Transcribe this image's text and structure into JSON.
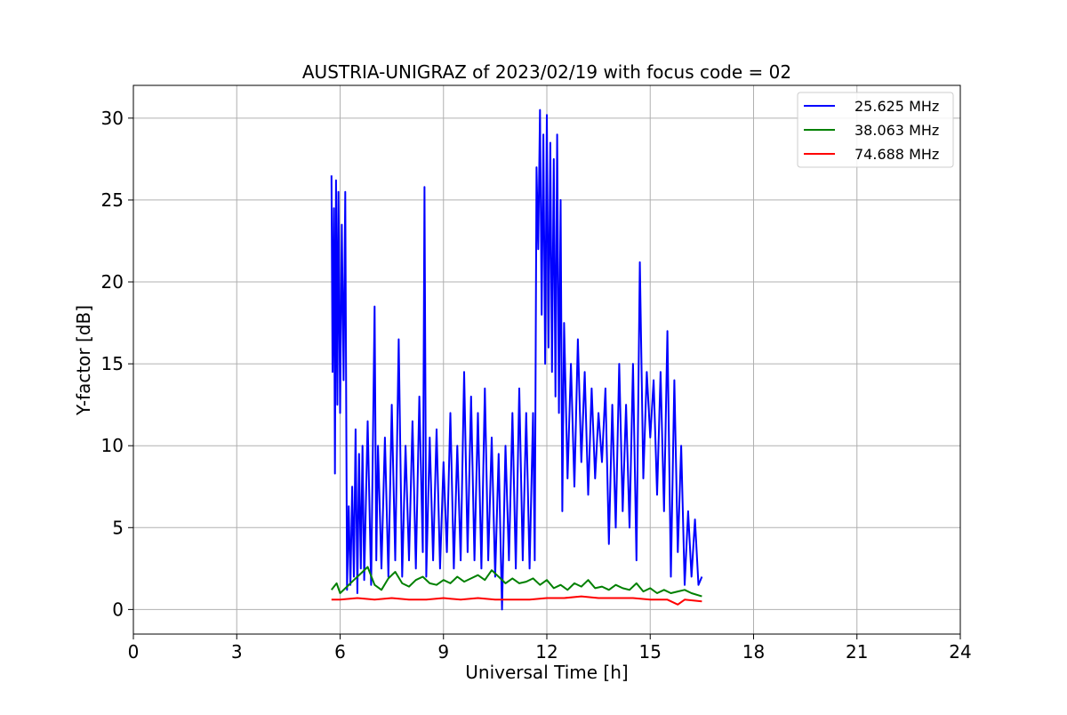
{
  "chart_data": {
    "type": "line",
    "title": "AUSTRIA-UNIGRAZ of 2023/02/19 with focus code = 02",
    "xlabel": "Universal Time [h]",
    "ylabel": "Y-factor [dB]",
    "xlim": [
      0,
      24
    ],
    "ylim": [
      -1.5,
      32
    ],
    "xticks": [
      0,
      3,
      6,
      9,
      12,
      15,
      18,
      21,
      24
    ],
    "yticks": [
      0,
      5,
      10,
      15,
      20,
      25,
      30
    ],
    "grid": true,
    "legend_position": "top-right",
    "series": [
      {
        "name": "25.625 MHz",
        "color": "#0000ff",
        "x": [
          5.75,
          5.78,
          5.82,
          5.85,
          5.88,
          5.92,
          5.95,
          6.0,
          6.05,
          6.1,
          6.15,
          6.2,
          6.25,
          6.3,
          6.35,
          6.4,
          6.45,
          6.5,
          6.55,
          6.6,
          6.65,
          6.7,
          6.8,
          6.9,
          7.0,
          7.05,
          7.1,
          7.2,
          7.3,
          7.4,
          7.5,
          7.6,
          7.7,
          7.8,
          7.9,
          8.0,
          8.1,
          8.2,
          8.3,
          8.4,
          8.45,
          8.5,
          8.6,
          8.7,
          8.8,
          8.9,
          9.0,
          9.1,
          9.2,
          9.3,
          9.4,
          9.5,
          9.6,
          9.7,
          9.8,
          9.9,
          10.0,
          10.1,
          10.2,
          10.3,
          10.4,
          10.5,
          10.6,
          10.7,
          10.8,
          10.9,
          11.0,
          11.1,
          11.2,
          11.3,
          11.4,
          11.5,
          11.6,
          11.65,
          11.7,
          11.75,
          11.8,
          11.85,
          11.9,
          11.95,
          12.0,
          12.05,
          12.1,
          12.15,
          12.2,
          12.25,
          12.3,
          12.35,
          12.4,
          12.45,
          12.5,
          12.6,
          12.7,
          12.8,
          12.9,
          13.0,
          13.1,
          13.2,
          13.3,
          13.4,
          13.5,
          13.6,
          13.7,
          13.8,
          13.9,
          14.0,
          14.1,
          14.2,
          14.3,
          14.4,
          14.5,
          14.6,
          14.7,
          14.8,
          14.9,
          15.0,
          15.1,
          15.2,
          15.3,
          15.4,
          15.5,
          15.6,
          15.7,
          15.8,
          15.9,
          16.0,
          16.1,
          16.2,
          16.3,
          16.4,
          16.5
        ],
        "values": [
          26.5,
          14.5,
          24.5,
          8.3,
          26.2,
          12.5,
          25.5,
          12.0,
          23.5,
          14.0,
          25.5,
          1.2,
          6.3,
          1.5,
          7.5,
          2.0,
          11.0,
          1.0,
          9.5,
          2.5,
          10.0,
          1.8,
          11.5,
          1.5,
          18.5,
          3.0,
          10.0,
          2.5,
          10.5,
          2.0,
          12.5,
          3.0,
          16.5,
          2.0,
          10.0,
          3.0,
          11.5,
          2.5,
          13.0,
          3.5,
          25.8,
          2.0,
          10.5,
          3.0,
          11.0,
          2.5,
          9.0,
          3.5,
          12.0,
          2.5,
          10.0,
          3.0,
          14.5,
          3.5,
          13.0,
          3.0,
          12.0,
          2.5,
          13.5,
          3.0,
          10.5,
          2.0,
          9.5,
          0.0,
          10.0,
          3.0,
          12.0,
          2.5,
          13.5,
          3.0,
          12.0,
          2.5,
          12.0,
          3.0,
          27.0,
          22.0,
          30.5,
          18.0,
          29.0,
          15.0,
          30.2,
          16.0,
          28.5,
          14.5,
          27.5,
          13.0,
          29.0,
          12.0,
          25.0,
          6.0,
          17.5,
          8.0,
          15.0,
          7.5,
          16.5,
          9.0,
          14.5,
          7.0,
          13.5,
          8.0,
          12.0,
          9.0,
          13.5,
          4.0,
          12.5,
          5.0,
          15.0,
          6.0,
          12.5,
          5.0,
          15.0,
          3.0,
          21.2,
          8.0,
          14.5,
          10.5,
          14.0,
          7.0,
          14.5,
          6.0,
          17.0,
          2.0,
          14.0,
          3.5,
          10.0,
          1.5,
          6.0,
          2.0,
          5.5,
          1.5,
          2.0
        ]
      },
      {
        "name": "38.063 MHz",
        "color": "#008000",
        "x": [
          5.75,
          5.9,
          6.0,
          6.2,
          6.4,
          6.6,
          6.8,
          7.0,
          7.2,
          7.4,
          7.6,
          7.8,
          8.0,
          8.2,
          8.4,
          8.6,
          8.8,
          9.0,
          9.2,
          9.4,
          9.6,
          9.8,
          10.0,
          10.2,
          10.4,
          10.6,
          10.8,
          11.0,
          11.2,
          11.4,
          11.6,
          11.8,
          12.0,
          12.2,
          12.4,
          12.6,
          12.8,
          13.0,
          13.2,
          13.4,
          13.6,
          13.8,
          14.0,
          14.2,
          14.4,
          14.6,
          14.8,
          15.0,
          15.2,
          15.4,
          15.6,
          15.8,
          16.0,
          16.2,
          16.5
        ],
        "values": [
          1.2,
          1.6,
          1.0,
          1.4,
          1.8,
          2.2,
          2.6,
          1.5,
          1.2,
          1.9,
          2.3,
          1.6,
          1.4,
          1.8,
          2.0,
          1.6,
          1.5,
          1.8,
          1.6,
          2.0,
          1.7,
          1.9,
          2.1,
          1.8,
          2.4,
          2.0,
          1.6,
          1.9,
          1.6,
          1.7,
          1.9,
          1.5,
          1.8,
          1.3,
          1.5,
          1.2,
          1.6,
          1.4,
          1.8,
          1.3,
          1.4,
          1.2,
          1.5,
          1.3,
          1.2,
          1.6,
          1.1,
          1.3,
          1.0,
          1.2,
          1.0,
          1.1,
          1.2,
          1.0,
          0.8
        ]
      },
      {
        "name": "74.688 MHz",
        "color": "#ff0000",
        "x": [
          5.75,
          6.0,
          6.5,
          7.0,
          7.5,
          8.0,
          8.5,
          9.0,
          9.5,
          10.0,
          10.5,
          11.0,
          11.5,
          12.0,
          12.5,
          13.0,
          13.5,
          14.0,
          14.5,
          15.0,
          15.5,
          15.8,
          16.0,
          16.5
        ],
        "values": [
          0.6,
          0.6,
          0.7,
          0.6,
          0.7,
          0.6,
          0.6,
          0.7,
          0.6,
          0.7,
          0.6,
          0.6,
          0.6,
          0.7,
          0.7,
          0.8,
          0.7,
          0.7,
          0.7,
          0.6,
          0.6,
          0.3,
          0.6,
          0.5
        ]
      }
    ]
  }
}
